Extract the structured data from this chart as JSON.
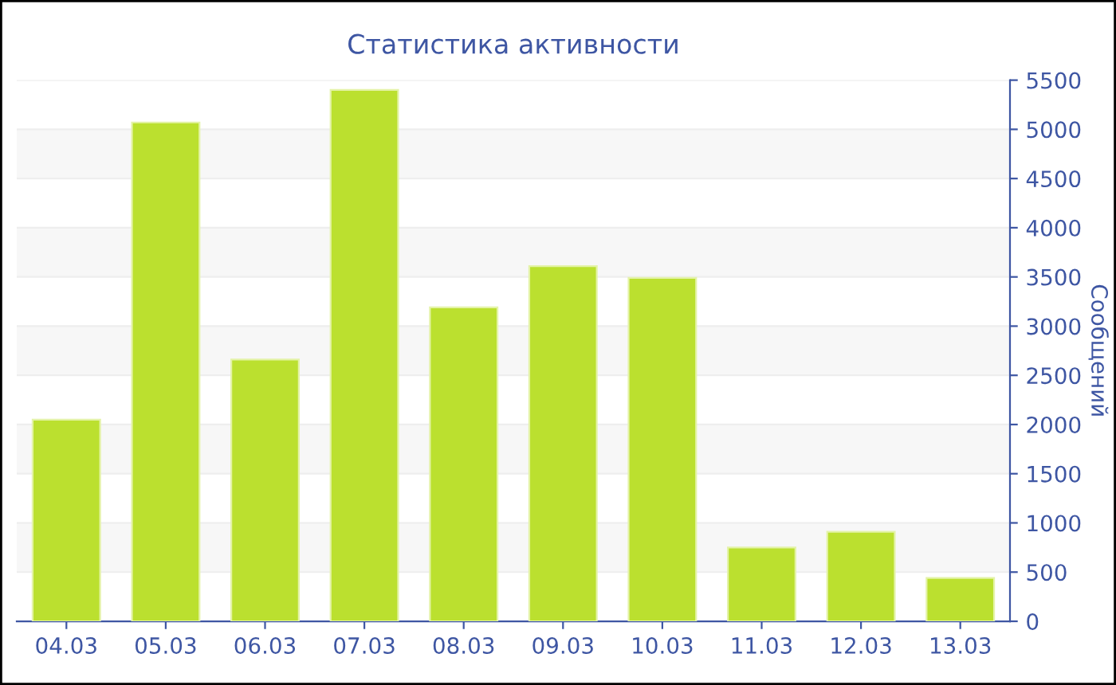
{
  "chart_data": {
    "type": "bar",
    "title": "Статистика активности",
    "ylabel": "Сообщений",
    "categories": [
      "04.03",
      "05.03",
      "06.03",
      "07.03",
      "08.03",
      "09.03",
      "10.03",
      "11.03",
      "12.03",
      "13.03"
    ],
    "series": [
      {
        "color": "#bbe02f",
        "values": [
          2050,
          5070,
          2660,
          5400,
          3190,
          3610,
          3490,
          750,
          910,
          440
        ]
      }
    ],
    "ylim": [
      0,
      5500
    ],
    "yticks": [
      0,
      500,
      1000,
      1500,
      2000,
      2500,
      3000,
      3500,
      4000,
      4500,
      5000,
      5500
    ],
    "grid": "y",
    "legend": false
  }
}
